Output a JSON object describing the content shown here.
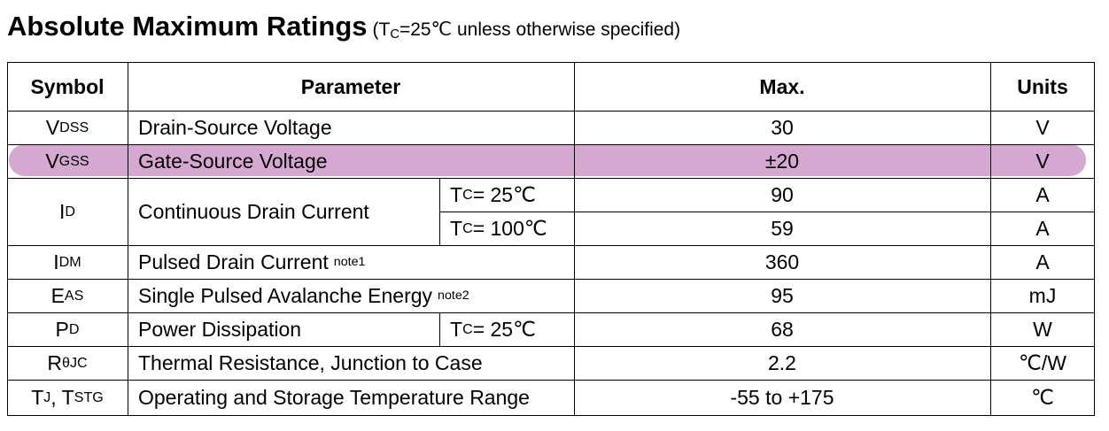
{
  "title": {
    "main": "Absolute Maximum Ratings",
    "cond_open": "(T",
    "cond_sub": "C",
    "cond_rest": "=25℃ unless otherwise specified)"
  },
  "headers": {
    "symbol": "Symbol",
    "parameter": "Parameter",
    "max": "Max.",
    "units": "Units"
  },
  "rows": [
    {
      "sym": "V",
      "sym_sub": "DSS",
      "param": "Drain-Source Voltage",
      "max": "30",
      "unit": "V"
    },
    {
      "sym": "V",
      "sym_sub": "GSS",
      "param": "Gate-Source Voltage",
      "max": "±20",
      "unit": "V",
      "highlighted": true
    },
    {
      "sym": "I",
      "sym_sub": "D",
      "param": "Continuous Drain Current",
      "sub_rows": [
        {
          "cond_t": "T",
          "cond_sub": "C",
          "cond_rest": " = 25℃",
          "max": "90",
          "unit": "A"
        },
        {
          "cond_t": "T",
          "cond_sub": "C",
          "cond_rest": " = 100℃",
          "max": "59",
          "unit": "A"
        }
      ]
    },
    {
      "sym": "I",
      "sym_sub": "DM",
      "param": "Pulsed Drain Current",
      "note": "note1",
      "max": "360",
      "unit": "A"
    },
    {
      "sym": "E",
      "sym_sub": "AS",
      "param": "Single Pulsed Avalanche Energy",
      "note": "note2",
      "max": "95",
      "unit": "mJ"
    },
    {
      "sym": "P",
      "sym_sub": "D",
      "param": "Power Dissipation",
      "cond_t": "T",
      "cond_sub": "C",
      "cond_rest": " = 25℃",
      "max": "68",
      "unit": "W"
    },
    {
      "sym": "R",
      "sym_sub": "θJC",
      "param": "Thermal Resistance, Junction to Case",
      "max": "2.2",
      "unit": "℃/W"
    },
    {
      "sym": "T",
      "sym_sub": "J",
      "sym_mid": ", T",
      "sym_sub2": "STG",
      "param": "Operating and Storage Temperature Range",
      "max": "-55 to +175",
      "unit": "℃"
    }
  ],
  "colors": {
    "highlight": "#d5a8d2",
    "line": "#000000"
  }
}
